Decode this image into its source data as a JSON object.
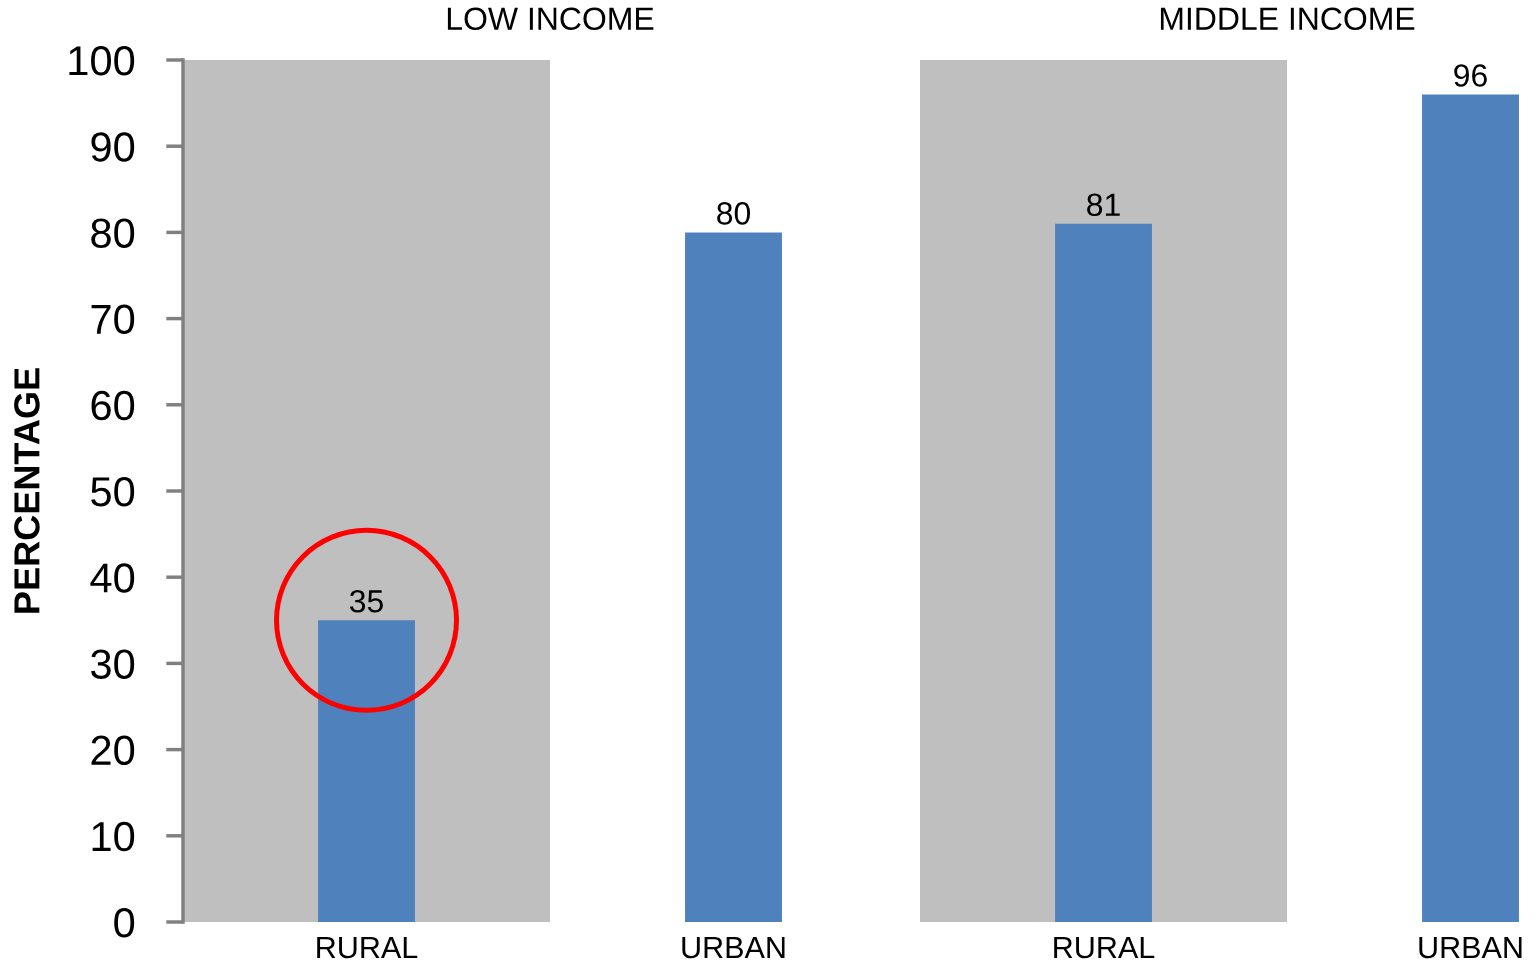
{
  "chart_data": [
    {
      "type": "bar",
      "title": "LOW INCOME",
      "ylabel": "PERCENTAGE",
      "categories": [
        "RURAL",
        "URBAN"
      ],
      "values": [
        35,
        80
      ],
      "color": "#4f81bd",
      "ylim": [
        0,
        100
      ],
      "yticks": [
        0,
        10,
        20,
        30,
        40,
        50,
        60,
        70,
        80,
        90,
        100
      ],
      "data_labels": true,
      "bands": [
        {
          "axis": "x",
          "from": "RURAL",
          "to": "RURAL",
          "color": "#bfbfbf"
        }
      ]
    },
    {
      "type": "bar",
      "title": "MIDDLE INCOME",
      "categories": [
        "RURAL",
        "URBAN"
      ],
      "values": [
        81,
        96
      ],
      "color": "#4f81bd",
      "ylim": [
        0,
        100
      ],
      "yticks": [
        0,
        10,
        20,
        30,
        40,
        50,
        60,
        70,
        80,
        90,
        100
      ],
      "tick_labels": "x",
      "data_labels": true,
      "bands": [
        {
          "axis": "x",
          "from": "RURAL",
          "to": "RURAL",
          "color": "#bfbfbf"
        }
      ]
    }
  ]
}
